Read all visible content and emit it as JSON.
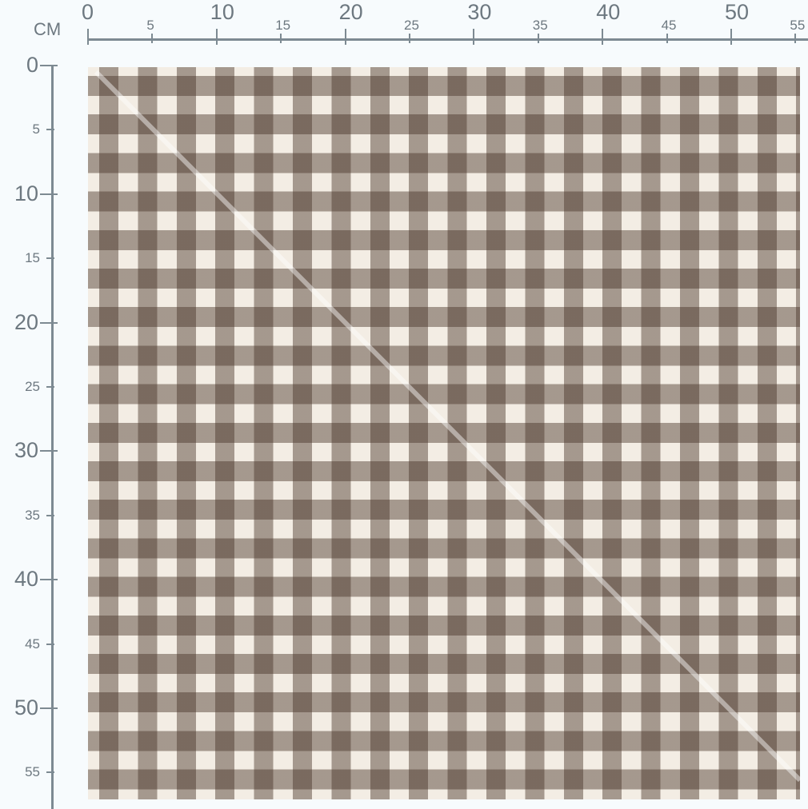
{
  "ruler": {
    "unit": "CM",
    "top_labels": [
      "0",
      "5",
      "10",
      "15",
      "20",
      "25",
      "30",
      "35",
      "40",
      "45",
      "50",
      "55"
    ],
    "left_labels": [
      "0",
      "5",
      "10",
      "15",
      "20",
      "25",
      "30",
      "35",
      "40",
      "45",
      "50",
      "55"
    ]
  },
  "swatch": {
    "pattern": "gingham",
    "colors": {
      "base": "#f3ede4",
      "stripe": "#a89a90",
      "overlap": "#6e5a4d"
    }
  }
}
